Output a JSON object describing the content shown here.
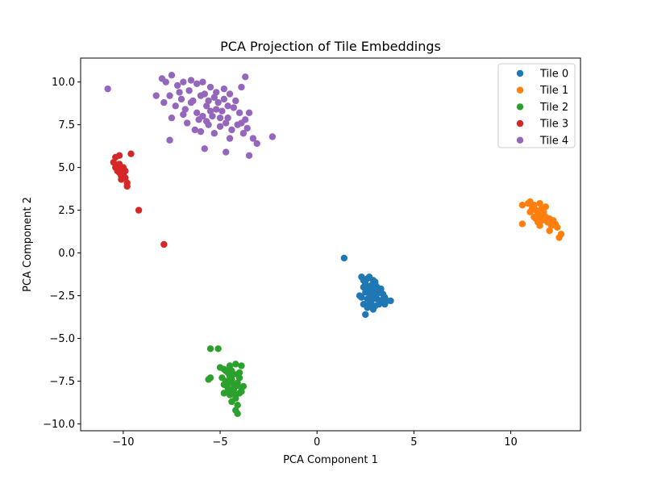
{
  "chart_data": {
    "type": "scatter",
    "title": "PCA Projection of Tile Embeddings",
    "xlabel": "PCA Component 1",
    "ylabel": "PCA Component 2",
    "xlim": [
      -12.2,
      13.6
    ],
    "ylim": [
      -10.4,
      11.4
    ],
    "xticks": [
      -10,
      -5,
      0,
      5,
      10
    ],
    "xtick_labels": [
      "−10",
      "−5",
      "0",
      "5",
      "10"
    ],
    "yticks": [
      -10.0,
      -7.5,
      -5.0,
      -2.5,
      0.0,
      2.5,
      5.0,
      7.5,
      10.0
    ],
    "ytick_labels": [
      "−10.0",
      "−7.5",
      "−5.0",
      "−2.5",
      "0.0",
      "2.5",
      "5.0",
      "7.5",
      "10.0"
    ],
    "grid": false,
    "legend_position": "top-right",
    "series": [
      {
        "name": "Tile 0",
        "color": "#1f77b4",
        "points": [
          [
            1.4,
            -0.3
          ],
          [
            2.3,
            -1.4
          ],
          [
            2.4,
            -1.6
          ],
          [
            2.6,
            -1.5
          ],
          [
            2.7,
            -1.4
          ],
          [
            2.9,
            -1.6
          ],
          [
            2.5,
            -1.8
          ],
          [
            2.8,
            -1.9
          ],
          [
            3.0,
            -1.8
          ],
          [
            3.1,
            -2.0
          ],
          [
            2.4,
            -2.0
          ],
          [
            2.6,
            -2.1
          ],
          [
            2.9,
            -2.2
          ],
          [
            3.2,
            -2.2
          ],
          [
            3.3,
            -2.1
          ],
          [
            2.5,
            -2.3
          ],
          [
            2.7,
            -2.4
          ],
          [
            3.0,
            -2.5
          ],
          [
            3.4,
            -2.4
          ],
          [
            3.5,
            -2.6
          ],
          [
            2.3,
            -2.6
          ],
          [
            2.6,
            -2.7
          ],
          [
            2.8,
            -2.8
          ],
          [
            3.1,
            -2.7
          ],
          [
            3.3,
            -2.9
          ],
          [
            3.6,
            -2.8
          ],
          [
            3.8,
            -2.8
          ],
          [
            2.7,
            -3.0
          ],
          [
            3.0,
            -3.1
          ],
          [
            3.2,
            -3.0
          ],
          [
            2.4,
            -3.0
          ],
          [
            2.6,
            -3.2
          ],
          [
            2.9,
            -3.3
          ],
          [
            2.5,
            -3.6
          ],
          [
            3.5,
            -3.0
          ],
          [
            3.1,
            -2.4
          ],
          [
            2.8,
            -2.6
          ],
          [
            3.4,
            -2.7
          ],
          [
            2.2,
            -2.5
          ],
          [
            3.0,
            -1.7
          ]
        ]
      },
      {
        "name": "Tile 1",
        "color": "#ff7f0e",
        "points": [
          [
            10.6,
            2.8
          ],
          [
            10.9,
            2.9
          ],
          [
            11.0,
            3.0
          ],
          [
            11.2,
            2.8
          ],
          [
            11.5,
            2.9
          ],
          [
            11.1,
            2.6
          ],
          [
            11.3,
            2.5
          ],
          [
            11.6,
            2.6
          ],
          [
            11.4,
            2.3
          ],
          [
            11.7,
            2.4
          ],
          [
            11.2,
            2.1
          ],
          [
            11.5,
            2.2
          ],
          [
            11.8,
            2.1
          ],
          [
            12.0,
            2.0
          ],
          [
            11.6,
            1.9
          ],
          [
            11.9,
            1.8
          ],
          [
            12.2,
            1.9
          ],
          [
            12.1,
            1.6
          ],
          [
            11.5,
            1.6
          ],
          [
            11.3,
            2.0
          ],
          [
            12.4,
            1.5
          ],
          [
            12.6,
            1.1
          ],
          [
            12.5,
            0.9
          ],
          [
            12.0,
            1.3
          ],
          [
            10.6,
            1.7
          ],
          [
            11.0,
            2.4
          ],
          [
            11.8,
            2.7
          ],
          [
            12.3,
            1.7
          ],
          [
            11.4,
            1.8
          ],
          [
            11.7,
            2.0
          ]
        ]
      },
      {
        "name": "Tile 2",
        "color": "#2ca02c",
        "points": [
          [
            -5.5,
            -5.6
          ],
          [
            -5.1,
            -5.6
          ],
          [
            -5.0,
            -6.7
          ],
          [
            -4.8,
            -6.8
          ],
          [
            -4.5,
            -6.6
          ],
          [
            -4.2,
            -6.5
          ],
          [
            -3.9,
            -6.6
          ],
          [
            -4.6,
            -7.0
          ],
          [
            -4.3,
            -7.1
          ],
          [
            -4.0,
            -7.0
          ],
          [
            -5.5,
            -7.3
          ],
          [
            -5.6,
            -7.4
          ],
          [
            -4.9,
            -7.3
          ],
          [
            -4.7,
            -7.5
          ],
          [
            -4.4,
            -7.4
          ],
          [
            -4.1,
            -7.6
          ],
          [
            -3.8,
            -7.8
          ],
          [
            -4.6,
            -7.9
          ],
          [
            -4.3,
            -8.0
          ],
          [
            -4.0,
            -8.2
          ],
          [
            -4.5,
            -8.3
          ],
          [
            -4.2,
            -8.5
          ],
          [
            -3.9,
            -8.1
          ],
          [
            -4.4,
            -8.7
          ],
          [
            -4.1,
            -8.9
          ],
          [
            -4.2,
            -9.2
          ],
          [
            -4.1,
            -9.4
          ],
          [
            -4.8,
            -7.7
          ],
          [
            -4.5,
            -7.2
          ],
          [
            -4.2,
            -7.8
          ],
          [
            -4.7,
            -6.9
          ],
          [
            -4.0,
            -7.3
          ],
          [
            -4.3,
            -7.7
          ],
          [
            -4.5,
            -8.1
          ],
          [
            -3.9,
            -7.9
          ],
          [
            -4.6,
            -7.6
          ],
          [
            -4.8,
            -8.2
          ],
          [
            -4.2,
            -8.3
          ],
          [
            -4.4,
            -6.9
          ],
          [
            -4.1,
            -7.1
          ]
        ]
      },
      {
        "name": "Tile 3",
        "color": "#d62728",
        "points": [
          [
            -10.2,
            5.7
          ],
          [
            -10.4,
            5.6
          ],
          [
            -10.5,
            5.3
          ],
          [
            -10.3,
            5.1
          ],
          [
            -10.1,
            4.9
          ],
          [
            -10.2,
            4.7
          ],
          [
            -10.0,
            4.6
          ],
          [
            -9.9,
            4.4
          ],
          [
            -10.1,
            4.3
          ],
          [
            -9.8,
            4.1
          ],
          [
            -9.8,
            3.9
          ],
          [
            -10.4,
            5.0
          ],
          [
            -10.3,
            4.8
          ],
          [
            -10.0,
            5.0
          ],
          [
            -9.6,
            5.8
          ],
          [
            -9.2,
            2.5
          ],
          [
            -7.9,
            0.5
          ],
          [
            -10.2,
            5.2
          ],
          [
            -9.9,
            4.8
          ],
          [
            -10.1,
            4.5
          ]
        ]
      },
      {
        "name": "Tile 4",
        "color": "#9467bd",
        "points": [
          [
            -10.8,
            9.6
          ],
          [
            -8.3,
            9.2
          ],
          [
            -8.0,
            10.2
          ],
          [
            -7.8,
            10.0
          ],
          [
            -7.5,
            10.4
          ],
          [
            -7.2,
            9.8
          ],
          [
            -6.9,
            10.0
          ],
          [
            -6.5,
            10.1
          ],
          [
            -6.2,
            9.9
          ],
          [
            -5.9,
            10.0
          ],
          [
            -5.5,
            9.7
          ],
          [
            -5.2,
            9.4
          ],
          [
            -4.8,
            9.6
          ],
          [
            -4.5,
            9.3
          ],
          [
            -3.9,
            9.7
          ],
          [
            -3.7,
            10.3
          ],
          [
            -7.9,
            8.8
          ],
          [
            -7.6,
            9.2
          ],
          [
            -7.3,
            8.6
          ],
          [
            -7.0,
            9.0
          ],
          [
            -6.8,
            8.4
          ],
          [
            -6.5,
            8.8
          ],
          [
            -6.2,
            8.2
          ],
          [
            -6.0,
            9.2
          ],
          [
            -5.7,
            8.6
          ],
          [
            -5.4,
            8.0
          ],
          [
            -5.1,
            8.8
          ],
          [
            -4.9,
            8.3
          ],
          [
            -4.6,
            7.9
          ],
          [
            -4.3,
            8.5
          ],
          [
            -4.0,
            8.2
          ],
          [
            -3.7,
            7.8
          ],
          [
            -3.5,
            8.2
          ],
          [
            -7.5,
            7.9
          ],
          [
            -6.7,
            7.6
          ],
          [
            -6.3,
            7.2
          ],
          [
            -6.0,
            7.1
          ],
          [
            -5.6,
            7.5
          ],
          [
            -5.3,
            7.0
          ],
          [
            -5.0,
            7.4
          ],
          [
            -4.7,
            7.6
          ],
          [
            -4.4,
            7.2
          ],
          [
            -4.1,
            7.5
          ],
          [
            -3.8,
            7.0
          ],
          [
            -3.6,
            7.3
          ],
          [
            -3.3,
            6.7
          ],
          [
            -3.1,
            6.4
          ],
          [
            -2.3,
            6.8
          ],
          [
            -7.6,
            6.6
          ],
          [
            -5.8,
            6.1
          ],
          [
            -4.7,
            5.9
          ],
          [
            -3.5,
            5.7
          ],
          [
            -4.5,
            6.7
          ],
          [
            -6.4,
            8.9
          ],
          [
            -5.9,
            8.0
          ],
          [
            -5.2,
            8.4
          ],
          [
            -4.8,
            9.0
          ],
          [
            -6.1,
            7.8
          ],
          [
            -5.5,
            8.3
          ],
          [
            -5.0,
            7.9
          ],
          [
            -6.6,
            9.5
          ],
          [
            -5.8,
            9.3
          ],
          [
            -5.3,
            9.1
          ],
          [
            -4.2,
            8.9
          ],
          [
            -3.9,
            7.6
          ],
          [
            -6.9,
            8.1
          ],
          [
            -7.1,
            9.4
          ],
          [
            -5.6,
            8.9
          ],
          [
            -4.6,
            8.6
          ],
          [
            -5.7,
            7.7
          ]
        ]
      }
    ]
  }
}
